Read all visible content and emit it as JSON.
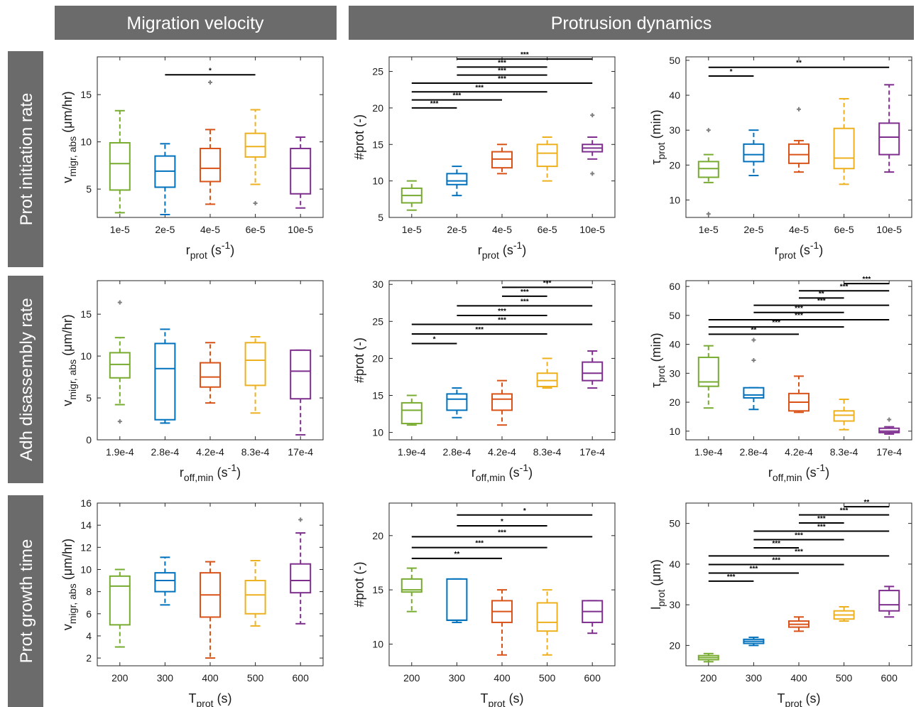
{
  "headers": {
    "col1": "Migration velocity",
    "col2": "Protrusion dynamics",
    "rows": [
      "Prot initiation rate",
      "Adh disassembly rate",
      "Prot growth time"
    ]
  },
  "colors": [
    "#77ac30",
    "#0072bd",
    "#d95319",
    "#edb120",
    "#7e2f8e"
  ],
  "chart_data": [
    {
      "type": "box",
      "row": 0,
      "col": 0,
      "categories": [
        "1e-5",
        "2e-5",
        "4e-5",
        "6e-5",
        "10e-5"
      ],
      "ylim": [
        2,
        19
      ],
      "yticks": [
        5,
        10,
        15
      ],
      "ylabel": {
        "main": "v",
        "sub": "migr, abs",
        "rest": " (μm/hr)"
      },
      "xlabel": {
        "main": "r",
        "sub": "prot",
        "rest": " (s",
        "sup": "-1",
        "close": ")"
      },
      "boxes": [
        {
          "min": 2.5,
          "q1": 4.9,
          "med": 7.7,
          "q3": 9.9,
          "max": 13.3,
          "out": []
        },
        {
          "min": 2.3,
          "q1": 5.2,
          "med": 6.9,
          "q3": 8.5,
          "max": 9.8,
          "out": []
        },
        {
          "min": 3.4,
          "q1": 5.8,
          "med": 7.2,
          "q3": 9.3,
          "max": 11.3,
          "out": [
            16.3
          ]
        },
        {
          "min": 5.5,
          "q1": 8.4,
          "med": 9.5,
          "q3": 10.9,
          "max": 13.4,
          "out": [
            3.5
          ]
        },
        {
          "min": 3,
          "q1": 4.5,
          "med": 7.2,
          "q3": 9.3,
          "max": 10.5,
          "out": []
        }
      ],
      "sig": [
        {
          "i": 1,
          "j": 3,
          "y": 17.1,
          "label": "*"
        }
      ]
    },
    {
      "type": "box",
      "row": 0,
      "col": 1,
      "categories": [
        "1e-5",
        "2e-5",
        "4e-5",
        "6e-5",
        "10e-5"
      ],
      "ylim": [
        5,
        27
      ],
      "yticks": [
        5,
        10,
        15,
        20,
        25
      ],
      "ylabel": {
        "main": "#prot (-)",
        "sub": "",
        "rest": ""
      },
      "xlabel": {
        "main": "r",
        "sub": "prot",
        "rest": " (s",
        "sup": "-1",
        "close": ")"
      },
      "boxes": [
        {
          "min": 6,
          "q1": 7,
          "med": 8,
          "q3": 9,
          "max": 10,
          "out": []
        },
        {
          "min": 8,
          "q1": 9.5,
          "med": 10,
          "q3": 11,
          "max": 12,
          "out": []
        },
        {
          "min": 11,
          "q1": 11.8,
          "med": 13,
          "q3": 14,
          "max": 15,
          "out": []
        },
        {
          "min": 10,
          "q1": 12,
          "med": 13.8,
          "q3": 15,
          "max": 16,
          "out": []
        },
        {
          "min": 13,
          "q1": 14,
          "med": 14.5,
          "q3": 15,
          "max": 16,
          "out": [
            19,
            11
          ]
        }
      ],
      "sig": [
        {
          "i": 0,
          "j": 1,
          "y": 20,
          "label": "***"
        },
        {
          "i": 0,
          "j": 2,
          "y": 21.1,
          "label": "***"
        },
        {
          "i": 0,
          "j": 3,
          "y": 22.2,
          "label": "***"
        },
        {
          "i": 0,
          "j": 4,
          "y": 23.4,
          "label": "***"
        },
        {
          "i": 1,
          "j": 3,
          "y": 24.5,
          "label": "***"
        },
        {
          "i": 1,
          "j": 3,
          "y": 25.6,
          "label": "***"
        },
        {
          "i": 1,
          "j": 4,
          "y": 26.7,
          "label": "***"
        }
      ]
    },
    {
      "type": "box",
      "row": 0,
      "col": 2,
      "categories": [
        "1e-5",
        "2e-5",
        "4e-5",
        "6e-5",
        "10e-5"
      ],
      "ylim": [
        5,
        51
      ],
      "yticks": [
        10,
        20,
        30,
        40,
        50
      ],
      "ylabel": {
        "main": "τ",
        "sub": "prot",
        "rest": " (min)"
      },
      "xlabel": {
        "main": "r",
        "sub": "prot",
        "rest": " (s",
        "sup": "-1",
        "close": ")"
      },
      "boxes": [
        {
          "min": 15,
          "q1": 16.5,
          "med": 19,
          "q3": 21,
          "max": 23,
          "out": [
            30,
            6
          ]
        },
        {
          "min": 17,
          "q1": 21,
          "med": 23,
          "q3": 26,
          "max": 30,
          "out": []
        },
        {
          "min": 18,
          "q1": 20.5,
          "med": 23,
          "q3": 26,
          "max": 27,
          "out": [
            36
          ]
        },
        {
          "min": 14.5,
          "q1": 19,
          "med": 22,
          "q3": 30.5,
          "max": 39,
          "out": []
        },
        {
          "min": 18,
          "q1": 23,
          "med": 28,
          "q3": 32,
          "max": 43,
          "out": []
        }
      ],
      "sig": [
        {
          "i": 0,
          "j": 1,
          "y": 45.5,
          "label": "*"
        },
        {
          "i": 0,
          "j": 4,
          "y": 48,
          "label": "**"
        }
      ]
    },
    {
      "type": "box",
      "row": 1,
      "col": 0,
      "categories": [
        "1.9e-4",
        "2.8e-4",
        "4.2e-4",
        "8.3e-4",
        "17e-4"
      ],
      "ylim": [
        0,
        19
      ],
      "yticks": [
        0,
        5,
        10,
        15
      ],
      "ylabel": {
        "main": "v",
        "sub": "migr, abs",
        "rest": " (μm/hr)"
      },
      "xlabel": {
        "main": "r",
        "sub": "off,min",
        "rest": " (s",
        "sup": "-1",
        "close": ")"
      },
      "boxes": [
        {
          "min": 4.2,
          "q1": 7.4,
          "med": 9,
          "q3": 10.4,
          "max": 12.2,
          "out": [
            16.4,
            2.2
          ]
        },
        {
          "min": 2,
          "q1": 2.4,
          "med": 8.5,
          "q3": 11.5,
          "max": 13.2,
          "out": []
        },
        {
          "min": 4.4,
          "q1": 6.3,
          "med": 7.5,
          "q3": 9.2,
          "max": 11.6,
          "out": []
        },
        {
          "min": 3.2,
          "q1": 6.5,
          "med": 9.5,
          "q3": 11.6,
          "max": 12.3,
          "out": []
        },
        {
          "min": 0.6,
          "q1": 4.9,
          "med": 8.2,
          "q3": 10.7,
          "max": 10.7,
          "out": []
        }
      ],
      "sig": []
    },
    {
      "type": "box",
      "row": 1,
      "col": 1,
      "categories": [
        "1.9e-4",
        "2.8e-4",
        "4.2e-4",
        "8.3e-4",
        "17e-4"
      ],
      "ylim": [
        9,
        30.5
      ],
      "yticks": [
        10,
        15,
        20,
        25,
        30
      ],
      "ylabel": {
        "main": "#prot (-)",
        "sub": "",
        "rest": ""
      },
      "xlabel": {
        "main": "r",
        "sub": "off,min",
        "rest": " (s",
        "sup": "-1",
        "close": ")"
      },
      "boxes": [
        {
          "min": 11,
          "q1": 11.2,
          "med": 13,
          "q3": 14,
          "max": 15,
          "out": []
        },
        {
          "min": 12,
          "q1": 13,
          "med": 14.5,
          "q3": 15.2,
          "max": 16,
          "out": []
        },
        {
          "min": 11,
          "q1": 13,
          "med": 14.5,
          "q3": 15.2,
          "max": 17,
          "out": []
        },
        {
          "min": 16,
          "q1": 16.2,
          "med": 17,
          "q3": 18,
          "max": 20,
          "out": []
        },
        {
          "min": 16,
          "q1": 17,
          "med": 18,
          "q3": 19.5,
          "max": 21,
          "out": []
        }
      ],
      "sig": [
        {
          "i": 0,
          "j": 1,
          "y": 22,
          "label": "*"
        },
        {
          "i": 0,
          "j": 3,
          "y": 23.3,
          "label": "***"
        },
        {
          "i": 0,
          "j": 4,
          "y": 24.6,
          "label": "***"
        },
        {
          "i": 1,
          "j": 3,
          "y": 25.8,
          "label": "***"
        },
        {
          "i": 1,
          "j": 4,
          "y": 27.1,
          "label": "***"
        },
        {
          "i": 2,
          "j": 3,
          "y": 28.4,
          "label": "***"
        },
        {
          "i": 2,
          "j": 4,
          "y": 29.6,
          "label": "***"
        }
      ]
    },
    {
      "type": "box",
      "row": 1,
      "col": 2,
      "categories": [
        "1.9e-4",
        "2.8e-4",
        "4.2e-4",
        "8.3e-4",
        "17e-4"
      ],
      "ylim": [
        7,
        62
      ],
      "yticks": [
        10,
        20,
        30,
        40,
        50,
        60
      ],
      "ylabel": {
        "main": "τ",
        "sub": "prot",
        "rest": " (min)"
      },
      "xlabel": {
        "main": "r",
        "sub": "off,min",
        "rest": " (s",
        "sup": "-1",
        "close": ")"
      },
      "boxes": [
        {
          "min": 18,
          "q1": 25.5,
          "med": 27,
          "q3": 35.5,
          "max": 39.5,
          "out": []
        },
        {
          "min": 17.5,
          "q1": 21.5,
          "med": 22.5,
          "q3": 25,
          "max": 25,
          "out": [
            41.5,
            34.5
          ]
        },
        {
          "min": 16.5,
          "q1": 17,
          "med": 20,
          "q3": 23,
          "max": 29,
          "out": []
        },
        {
          "min": 10.5,
          "q1": 13.5,
          "med": 15.5,
          "q3": 17,
          "max": 21,
          "out": []
        },
        {
          "min": 9,
          "q1": 9.5,
          "med": 10,
          "q3": 11,
          "max": 11.5,
          "out": [
            14
          ]
        }
      ],
      "sig": [
        {
          "i": 0,
          "j": 2,
          "y": 43.5,
          "label": "**"
        },
        {
          "i": 0,
          "j": 3,
          "y": 46,
          "label": "***"
        },
        {
          "i": 0,
          "j": 4,
          "y": 48.5,
          "label": "***"
        },
        {
          "i": 1,
          "j": 3,
          "y": 51,
          "label": "***"
        },
        {
          "i": 1,
          "j": 4,
          "y": 53.5,
          "label": "***"
        },
        {
          "i": 2,
          "j": 3,
          "y": 56,
          "label": "**"
        },
        {
          "i": 2,
          "j": 4,
          "y": 58.5,
          "label": "***"
        },
        {
          "i": 3,
          "j": 4,
          "y": 61,
          "label": "***"
        }
      ]
    },
    {
      "type": "box",
      "row": 2,
      "col": 0,
      "categories": [
        "200",
        "300",
        "400",
        "500",
        "600"
      ],
      "ylim": [
        1.3,
        16
      ],
      "yticks": [
        2,
        4,
        6,
        8,
        10,
        12,
        14,
        16
      ],
      "ylabel": {
        "main": "v",
        "sub": "migr, abs",
        "rest": " (μm/hr)"
      },
      "xlabel": {
        "main": "T",
        "sub": "prot",
        "rest": " (s)",
        "sup": "",
        "close": ""
      },
      "boxes": [
        {
          "min": 3,
          "q1": 5,
          "med": 8.5,
          "q3": 9.4,
          "max": 10,
          "out": []
        },
        {
          "min": 6.8,
          "q1": 8,
          "med": 9,
          "q3": 9.7,
          "max": 11.1,
          "out": []
        },
        {
          "min": 2,
          "q1": 5.7,
          "med": 7.7,
          "q3": 9.7,
          "max": 10.7,
          "out": []
        },
        {
          "min": 4.9,
          "q1": 6,
          "med": 7.7,
          "q3": 9,
          "max": 10.8,
          "out": []
        },
        {
          "min": 5.1,
          "q1": 7.9,
          "med": 9,
          "q3": 10.5,
          "max": 13.3,
          "out": [
            14.5
          ]
        }
      ],
      "sig": []
    },
    {
      "type": "box",
      "row": 2,
      "col": 1,
      "categories": [
        "200",
        "300",
        "400",
        "500",
        "600"
      ],
      "ylim": [
        8,
        23
      ],
      "yticks": [
        10,
        15,
        20
      ],
      "ylabel": {
        "main": "#prot (-)",
        "sub": "",
        "rest": ""
      },
      "xlabel": {
        "main": "T",
        "sub": "prot",
        "rest": " (s)",
        "sup": "",
        "close": ""
      },
      "boxes": [
        {
          "min": 13,
          "q1": 14.8,
          "med": 15,
          "q3": 16,
          "max": 17,
          "out": []
        },
        {
          "min": 12,
          "q1": 12.2,
          "med": 12.2,
          "q3": 16,
          "max": 16,
          "out": []
        },
        {
          "min": 9,
          "q1": 12,
          "med": 13,
          "q3": 14,
          "max": 15,
          "out": []
        },
        {
          "min": 9,
          "q1": 11.2,
          "med": 12,
          "q3": 13.8,
          "max": 15,
          "out": []
        },
        {
          "min": 11,
          "q1": 12,
          "med": 13,
          "q3": 14,
          "max": 14,
          "out": []
        }
      ],
      "sig": [
        {
          "i": 0,
          "j": 2,
          "y": 17.9,
          "label": "**"
        },
        {
          "i": 0,
          "j": 3,
          "y": 18.9,
          "label": "***"
        },
        {
          "i": 0,
          "j": 4,
          "y": 19.9,
          "label": "***"
        },
        {
          "i": 1,
          "j": 3,
          "y": 20.9,
          "label": "*"
        },
        {
          "i": 1,
          "j": 4,
          "y": 21.9,
          "label": "*"
        }
      ]
    },
    {
      "type": "box",
      "row": 2,
      "col": 2,
      "categories": [
        "200",
        "300",
        "400",
        "500",
        "600"
      ],
      "ylim": [
        15,
        55
      ],
      "yticks": [
        20,
        30,
        40,
        50
      ],
      "ylabel": {
        "main": "l",
        "sub": "prot",
        "rest": " (μm)"
      },
      "xlabel": {
        "main": "T",
        "sub": "prot",
        "rest": " (s)",
        "sup": "",
        "close": ""
      },
      "boxes": [
        {
          "min": 16,
          "q1": 16.5,
          "med": 17,
          "q3": 17.5,
          "max": 18,
          "out": []
        },
        {
          "min": 20,
          "q1": 20.5,
          "med": 21,
          "q3": 21.5,
          "max": 22,
          "out": []
        },
        {
          "min": 23.5,
          "q1": 24.5,
          "med": 25.2,
          "q3": 26,
          "max": 27,
          "out": []
        },
        {
          "min": 26,
          "q1": 26.5,
          "med": 27.5,
          "q3": 28.5,
          "max": 29.5,
          "out": []
        },
        {
          "min": 27,
          "q1": 28.5,
          "med": 30,
          "q3": 33.5,
          "max": 34.5,
          "out": []
        }
      ],
      "sig": [
        {
          "i": 0,
          "j": 1,
          "y": 35.8,
          "label": "***"
        },
        {
          "i": 0,
          "j": 2,
          "y": 37.8,
          "label": "***"
        },
        {
          "i": 0,
          "j": 3,
          "y": 39.9,
          "label": "***"
        },
        {
          "i": 0,
          "j": 4,
          "y": 42,
          "label": "***"
        },
        {
          "i": 1,
          "j": 2,
          "y": 44,
          "label": "***"
        },
        {
          "i": 1,
          "j": 3,
          "y": 46,
          "label": "***"
        },
        {
          "i": 1,
          "j": 4,
          "y": 48.1,
          "label": "***"
        },
        {
          "i": 2,
          "j": 3,
          "y": 50.1,
          "label": "***"
        },
        {
          "i": 2,
          "j": 4,
          "y": 52.1,
          "label": "***"
        },
        {
          "i": 3,
          "j": 4,
          "y": 54.1,
          "label": "**"
        }
      ]
    }
  ]
}
